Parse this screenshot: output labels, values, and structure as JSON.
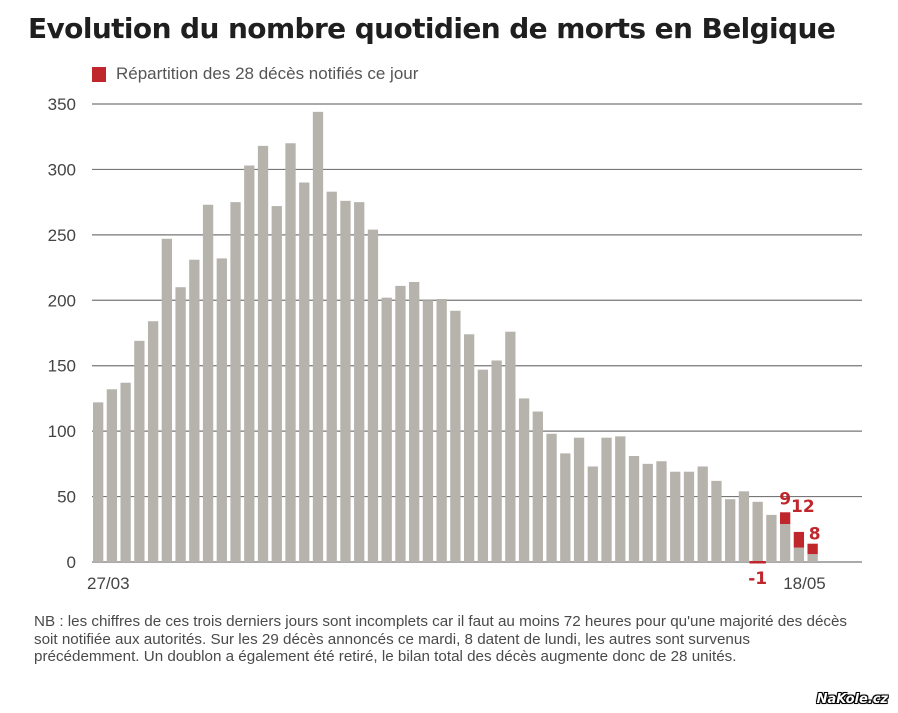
{
  "colors": {
    "bar": "#b6b3ad",
    "highlight": "#c0272d",
    "grid": "#777777",
    "text": "#444444"
  },
  "legend": {
    "label": "Répartition des 28 décès notifiés ce jour"
  },
  "note": "NB : les chiffres de ces trois derniers jours sont incomplets car il faut au moins 72 heures pour qu'une majorité des décès soit notifiée aux autorités. Sur les 29 décès annoncés ce mardi, 8 datent de lundi, les autres sont survenus précédemment. Un doublon a également été retiré, le bilan total des décès augmente donc de 28 unités.",
  "watermark": "NaKole.cz",
  "chart_data": {
    "type": "bar",
    "title": "Evolution du nombre quotidien de morts en Belgique",
    "ylim": [
      0,
      350
    ],
    "yticks": [
      0,
      50,
      100,
      150,
      200,
      250,
      300,
      350
    ],
    "grid": true,
    "xtick_labels": [
      {
        "index": 0,
        "text": "27/03"
      },
      {
        "index": 52,
        "text": "18/05"
      }
    ],
    "values": [
      122,
      132,
      137,
      169,
      184,
      247,
      210,
      231,
      273,
      232,
      275,
      303,
      318,
      272,
      320,
      290,
      344,
      283,
      276,
      275,
      254,
      202,
      211,
      214,
      200,
      201,
      192,
      174,
      147,
      154,
      176,
      125,
      115,
      98,
      83,
      95,
      73,
      95,
      96,
      81,
      75,
      77,
      69,
      69,
      73,
      62,
      48,
      54,
      46,
      36,
      29,
      11,
      6
    ],
    "highlight": {
      "name": "Répartition des 28 décès notifiés ce jour",
      "points": [
        {
          "index": 48,
          "value": -1,
          "label": "-1"
        },
        {
          "index": 50,
          "value": 9,
          "label": "9"
        },
        {
          "index": 51,
          "value": 12,
          "label": "12"
        },
        {
          "index": 52,
          "value": 8,
          "label": "8"
        }
      ]
    }
  }
}
